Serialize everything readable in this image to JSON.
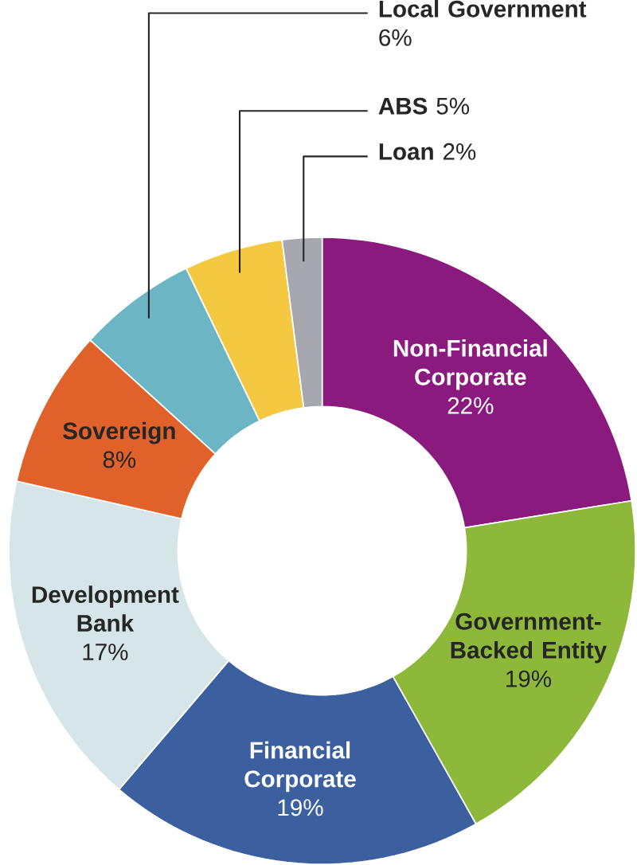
{
  "chart_data": {
    "type": "donut",
    "categories": [
      "Non-Financial Corporate",
      "Government-Backed Entity",
      "Financial Corporate",
      "Development Bank",
      "Sovereign",
      "Local Government",
      "ABS",
      "Loan"
    ],
    "values": [
      22,
      19,
      19,
      17,
      8,
      6,
      5,
      2
    ],
    "value_labels": [
      "22%",
      "19%",
      "19%",
      "17%",
      "8%",
      "6%",
      "5%",
      "2%"
    ],
    "colors": [
      "#8b1a7f",
      "#8db83a",
      "#3c5fa0",
      "#d6e6e8",
      "#e0622a",
      "#6bb5c4",
      "#f5c842",
      "#a7a7b0"
    ]
  }
}
